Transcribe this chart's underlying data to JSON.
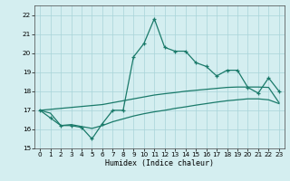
{
  "x": [
    0,
    1,
    2,
    3,
    4,
    5,
    6,
    7,
    8,
    9,
    10,
    11,
    12,
    13,
    14,
    15,
    16,
    17,
    18,
    19,
    20,
    21,
    22,
    23
  ],
  "y_main": [
    17.0,
    16.6,
    16.2,
    16.2,
    16.1,
    15.5,
    16.3,
    17.0,
    17.0,
    19.8,
    20.5,
    21.8,
    20.3,
    20.1,
    20.1,
    19.5,
    19.3,
    18.8,
    19.1,
    19.1,
    18.2,
    17.9,
    18.7,
    18.0
  ],
  "y_upper": [
    17.0,
    17.05,
    17.1,
    17.15,
    17.2,
    17.25,
    17.3,
    17.4,
    17.5,
    17.6,
    17.7,
    17.8,
    17.87,
    17.93,
    18.0,
    18.05,
    18.1,
    18.15,
    18.2,
    18.22,
    18.22,
    18.22,
    18.2,
    17.4
  ],
  "y_lower": [
    17.0,
    16.85,
    16.2,
    16.25,
    16.15,
    16.05,
    16.2,
    16.4,
    16.55,
    16.7,
    16.82,
    16.92,
    17.0,
    17.1,
    17.18,
    17.27,
    17.35,
    17.43,
    17.5,
    17.55,
    17.6,
    17.6,
    17.55,
    17.35
  ],
  "color": "#1a7a6a",
  "background": "#d4eef0",
  "grid_color": "#a8d4d8",
  "xlabel": "Humidex (Indice chaleur)",
  "ylim": [
    15.0,
    22.5
  ],
  "xlim": [
    -0.5,
    23.5
  ],
  "yticks": [
    15,
    16,
    17,
    18,
    19,
    20,
    21,
    22
  ],
  "xticks": [
    0,
    1,
    2,
    3,
    4,
    5,
    6,
    7,
    8,
    9,
    10,
    11,
    12,
    13,
    14,
    15,
    16,
    17,
    18,
    19,
    20,
    21,
    22,
    23
  ],
  "xlabel_fontsize": 6.0,
  "tick_fontsize": 5.2
}
